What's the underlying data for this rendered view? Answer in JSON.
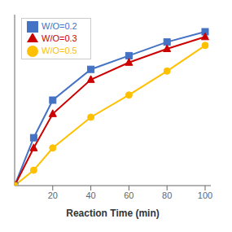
{
  "chart_data": {
    "type": "line",
    "xlabel": "Reaction Time (min)",
    "x": [
      0,
      10,
      20,
      40,
      60,
      80,
      100
    ],
    "series": [
      {
        "name": "W/O=0.2",
        "color": "#4472C4",
        "marker": "square",
        "values": [
          0.0,
          0.28,
          0.5,
          0.68,
          0.76,
          0.84,
          0.9
        ]
      },
      {
        "name": "W/O=0.3",
        "color": "#CC0000",
        "marker": "triangle",
        "values": [
          0.0,
          0.22,
          0.42,
          0.62,
          0.72,
          0.8,
          0.87
        ]
      },
      {
        "name": "W/O=0.5",
        "color": "#FFC000",
        "marker": "circle",
        "values": [
          0.0,
          0.09,
          0.22,
          0.4,
          0.53,
          0.67,
          0.82
        ]
      }
    ],
    "xlim": [
      0,
      103
    ],
    "xticks": [
      20,
      40,
      60,
      80,
      100
    ],
    "ylim": [
      0,
      1.0
    ],
    "legend": "upper left",
    "tick_labels": "x"
  }
}
